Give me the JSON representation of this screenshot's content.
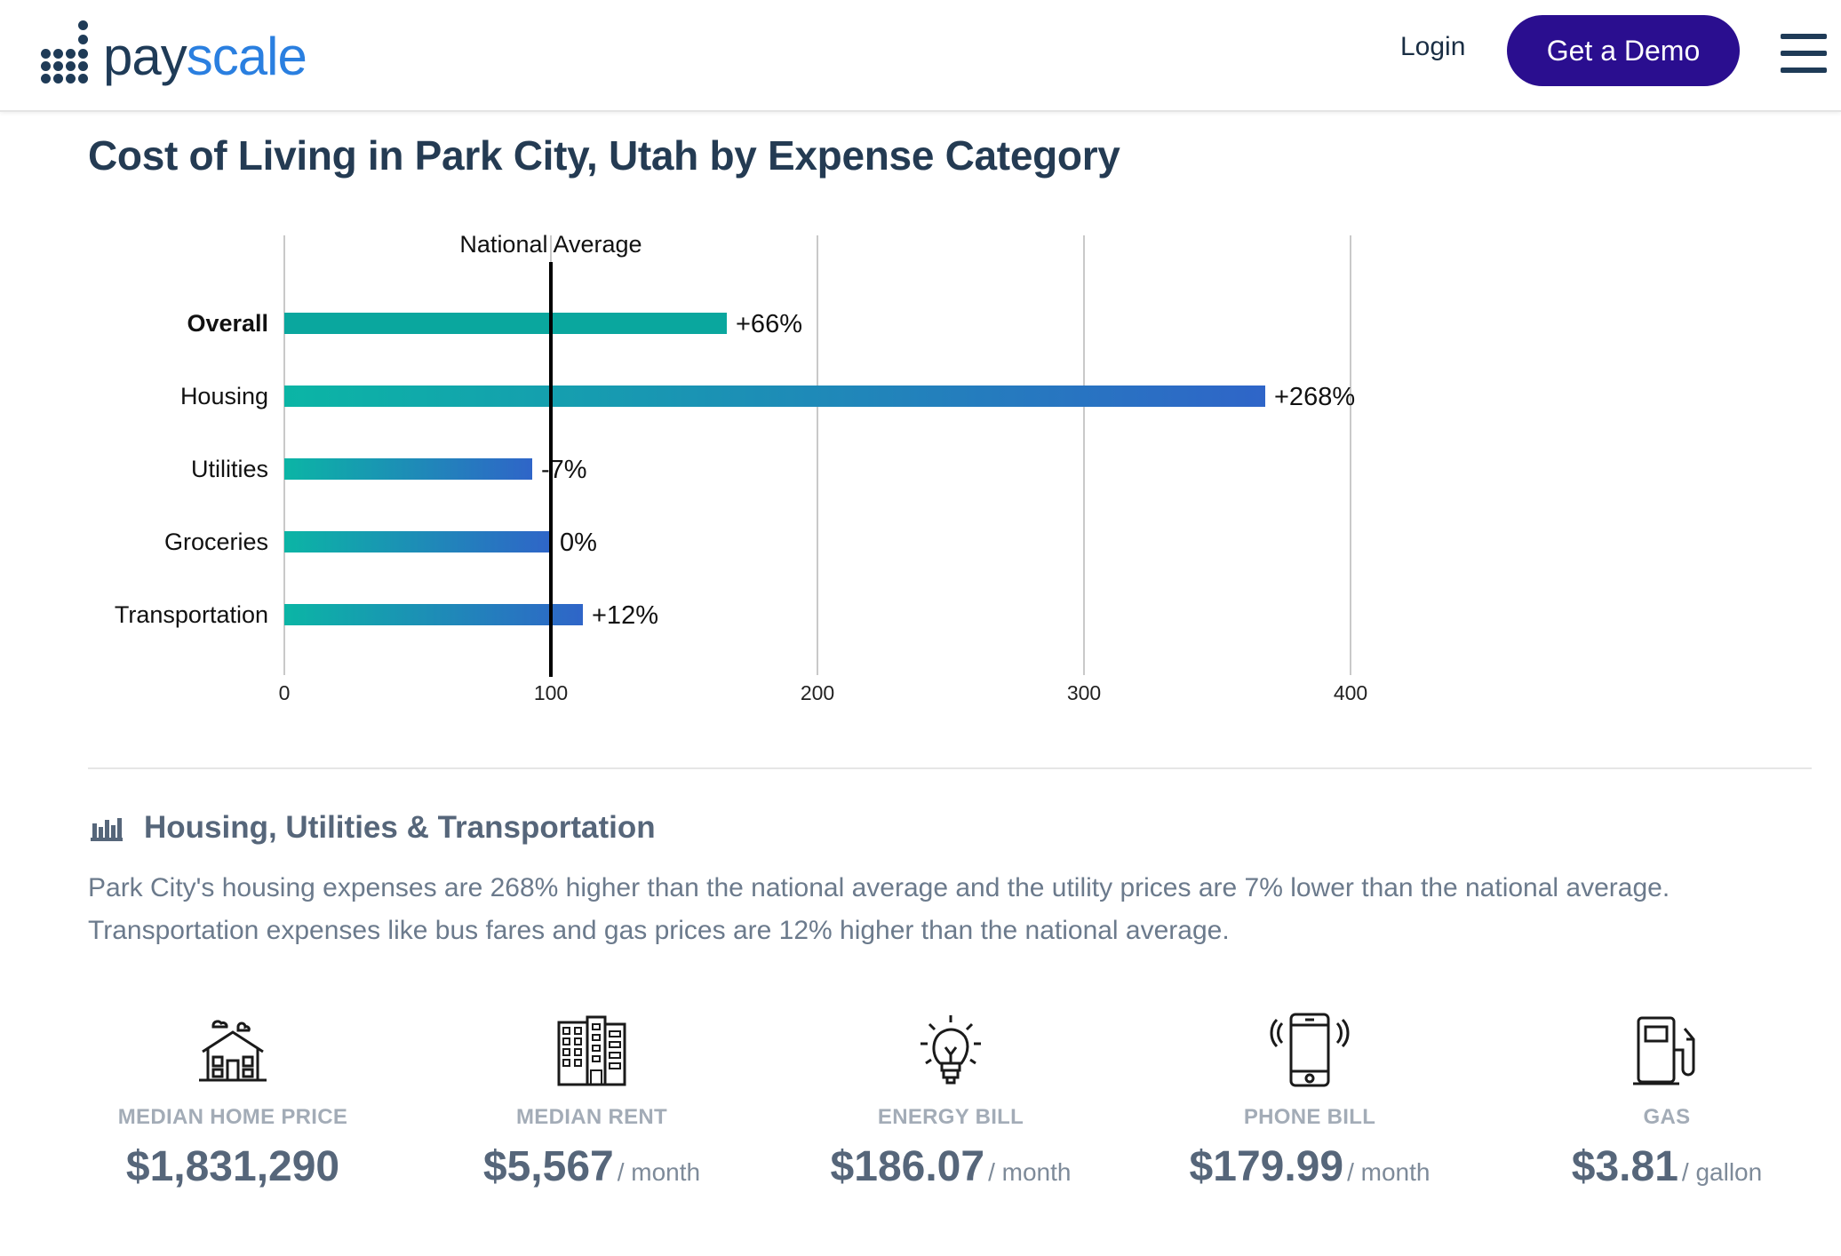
{
  "header": {
    "logo_part1": "pay",
    "logo_part2": "scale",
    "login": "Login",
    "cta": "Get a Demo",
    "colors": {
      "cta_bg": "#2a0e8f",
      "logo_dark": "#1f3b57",
      "logo_accent": "#2a7fe0"
    }
  },
  "page_title": "Cost of Living in Park City, Utah by Expense Category",
  "chart_data": {
    "type": "bar",
    "orientation": "horizontal",
    "categories": [
      "Overall",
      "Housing",
      "Utilities",
      "Groceries",
      "Transportation"
    ],
    "values": [
      166,
      368,
      93,
      100,
      112
    ],
    "data_labels": [
      "+66%",
      "+268%",
      "-7%",
      "0%",
      "+12%"
    ],
    "reference_line": {
      "value": 100,
      "label": "National Average"
    },
    "x_ticks": [
      0,
      100,
      200,
      300,
      400
    ],
    "xlim": [
      0,
      400
    ],
    "grid": true,
    "colors": {
      "start": "#0bb5a5",
      "end": "#2f65c8",
      "overall": "#0aa79e"
    }
  },
  "section": {
    "title": "Housing, Utilities & Transportation",
    "description": "Park City's housing expenses are 268% higher than the national average and the utility prices are 7% lower than the national average. Transportation expenses like bus fares and gas prices are 12% higher than the national average."
  },
  "stats": [
    {
      "icon": "house-icon",
      "label": "MEDIAN HOME PRICE",
      "value": "$1,831,290",
      "unit": ""
    },
    {
      "icon": "apartment-building-icon",
      "label": "MEDIAN RENT",
      "value": "$5,567",
      "unit": "/ month"
    },
    {
      "icon": "lightbulb-icon",
      "label": "ENERGY BILL",
      "value": "$186.07",
      "unit": "/ month"
    },
    {
      "icon": "phone-icon",
      "label": "PHONE BILL",
      "value": "$179.99",
      "unit": "/ month"
    },
    {
      "icon": "gas-pump-icon",
      "label": "GAS",
      "value": "$3.81",
      "unit": "/ gallon"
    }
  ]
}
